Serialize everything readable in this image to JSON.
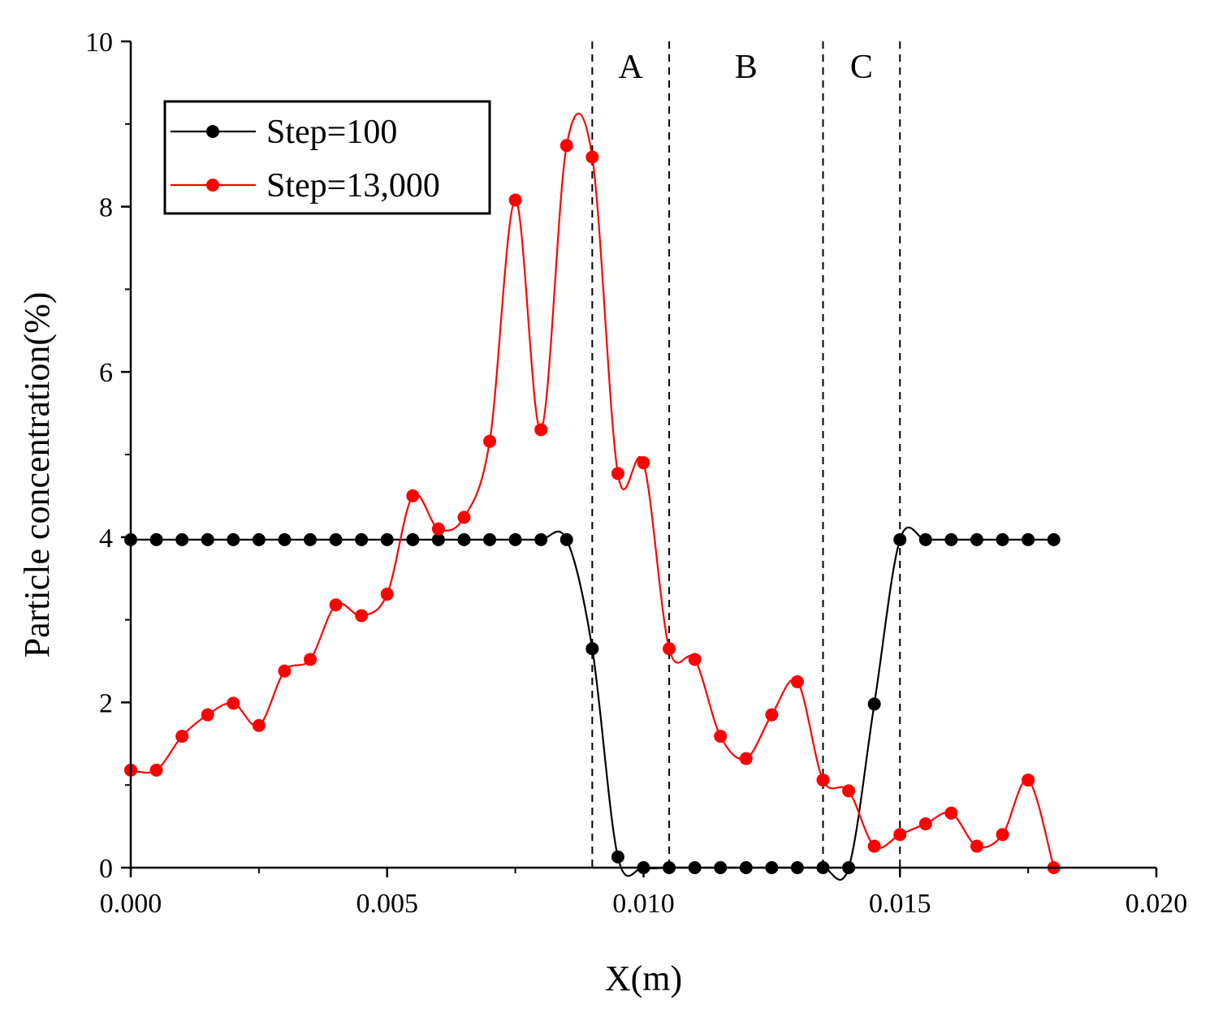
{
  "chart_data": {
    "type": "line",
    "xlabel": "X(m)",
    "ylabel": "Particle concentration(%)",
    "xlim": [
      0,
      0.02
    ],
    "ylim": [
      0,
      10
    ],
    "xticks": [
      0.0,
      0.005,
      0.01,
      0.015,
      0.02
    ],
    "xtick_labels": [
      "0.000",
      "0.005",
      "0.010",
      "0.015",
      "0.020"
    ],
    "yticks": [
      0,
      2,
      4,
      6,
      8,
      10
    ],
    "ytick_labels": [
      "0",
      "2",
      "4",
      "6",
      "8",
      "10"
    ],
    "grid": false,
    "legend_position": "top-left",
    "region_lines": [
      0.009,
      0.0105,
      0.0135,
      0.015
    ],
    "regions": [
      {
        "label": "A",
        "x": 0.00975
      },
      {
        "label": "B",
        "x": 0.012
      },
      {
        "label": "C",
        "x": 0.01425
      }
    ],
    "series": [
      {
        "name": "Step=100",
        "color": "#000000",
        "points": [
          [
            0.0,
            3.97
          ],
          [
            0.0005,
            3.97
          ],
          [
            0.001,
            3.97
          ],
          [
            0.0015,
            3.97
          ],
          [
            0.002,
            3.97
          ],
          [
            0.0025,
            3.97
          ],
          [
            0.003,
            3.97
          ],
          [
            0.0035,
            3.97
          ],
          [
            0.004,
            3.97
          ],
          [
            0.0045,
            3.97
          ],
          [
            0.005,
            3.97
          ],
          [
            0.0055,
            3.97
          ],
          [
            0.006,
            3.97
          ],
          [
            0.0065,
            3.97
          ],
          [
            0.007,
            3.97
          ],
          [
            0.0075,
            3.97
          ],
          [
            0.008,
            3.97
          ],
          [
            0.0085,
            3.97
          ],
          [
            0.009,
            2.65
          ],
          [
            0.0095,
            0.13
          ],
          [
            0.01,
            0.0
          ],
          [
            0.0105,
            0.0
          ],
          [
            0.011,
            0.0
          ],
          [
            0.0115,
            0.0
          ],
          [
            0.012,
            0.0
          ],
          [
            0.0125,
            0.0
          ],
          [
            0.013,
            0.0
          ],
          [
            0.0135,
            0.0
          ],
          [
            0.014,
            0.0
          ],
          [
            0.0145,
            1.98
          ],
          [
            0.015,
            3.97
          ],
          [
            0.0155,
            3.97
          ],
          [
            0.016,
            3.97
          ],
          [
            0.0165,
            3.97
          ],
          [
            0.017,
            3.97
          ],
          [
            0.0175,
            3.97
          ],
          [
            0.018,
            3.97
          ]
        ]
      },
      {
        "name": "Step=13,000",
        "color": "#ff0000",
        "points": [
          [
            0.0,
            1.18
          ],
          [
            0.0005,
            1.18
          ],
          [
            0.001,
            1.59
          ],
          [
            0.0015,
            1.85
          ],
          [
            0.002,
            1.99
          ],
          [
            0.0025,
            1.72
          ],
          [
            0.003,
            2.38
          ],
          [
            0.0035,
            2.52
          ],
          [
            0.004,
            3.18
          ],
          [
            0.0045,
            3.05
          ],
          [
            0.005,
            3.31
          ],
          [
            0.0055,
            4.5
          ],
          [
            0.006,
            4.1
          ],
          [
            0.0065,
            4.24
          ],
          [
            0.007,
            5.16
          ],
          [
            0.0075,
            8.08
          ],
          [
            0.008,
            5.3
          ],
          [
            0.0085,
            8.74
          ],
          [
            0.009,
            8.6
          ],
          [
            0.0095,
            4.77
          ],
          [
            0.01,
            4.9
          ],
          [
            0.0105,
            2.65
          ],
          [
            0.011,
            2.52
          ],
          [
            0.0115,
            1.59
          ],
          [
            0.012,
            1.32
          ],
          [
            0.0125,
            1.85
          ],
          [
            0.013,
            2.25
          ],
          [
            0.0135,
            1.06
          ],
          [
            0.014,
            0.93
          ],
          [
            0.0145,
            0.26
          ],
          [
            0.015,
            0.4
          ],
          [
            0.0155,
            0.53
          ],
          [
            0.016,
            0.66
          ],
          [
            0.0165,
            0.26
          ],
          [
            0.017,
            0.4
          ],
          [
            0.0175,
            1.06
          ],
          [
            0.018,
            0.0
          ]
        ]
      }
    ]
  }
}
